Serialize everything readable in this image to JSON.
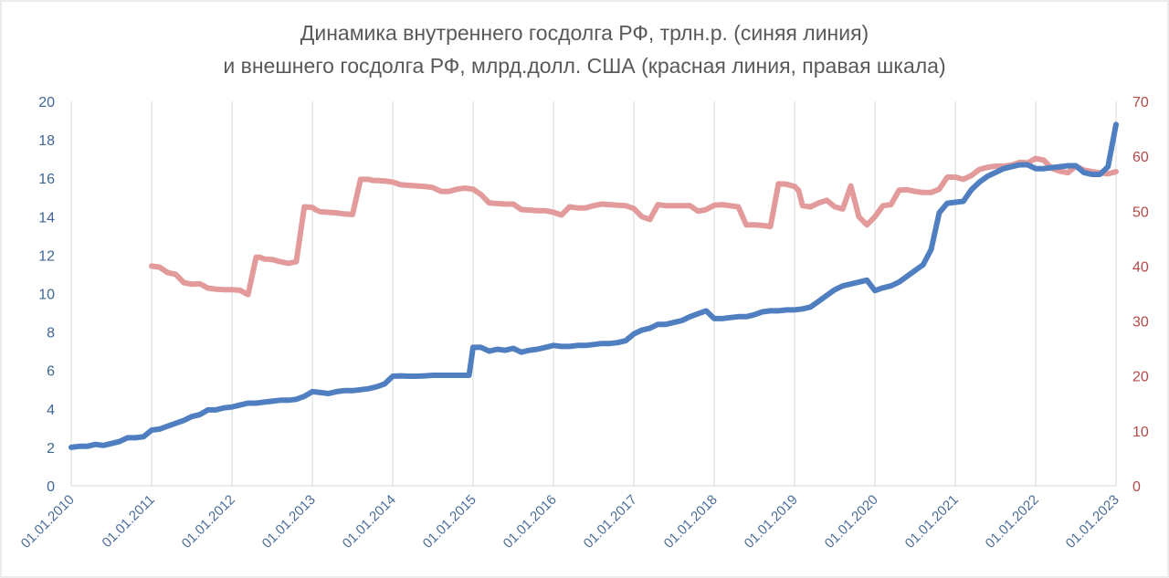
{
  "chart_data": {
    "type": "line",
    "title_lines": [
      "Динамика внутреннего госдолга РФ, трлн.р. (синяя линия)",
      "и внешнего госдолга РФ, млрд.долл. США (красная линия, правая шкала)"
    ],
    "x_labels": [
      "01.01.2010",
      "01.01.2011",
      "01.01.2012",
      "01.01.2013",
      "01.01.2014",
      "01.01.2015",
      "01.01.2016",
      "01.01.2017",
      "01.01.2018",
      "01.01.2019",
      "01.01.2020",
      "01.01.2021",
      "01.01.2022",
      "01.01.2023"
    ],
    "x_range": [
      2010,
      2023
    ],
    "y_left": {
      "range": [
        0,
        20
      ],
      "ticks": [
        "0",
        "2",
        "4",
        "6",
        "8",
        "10",
        "12",
        "14",
        "16",
        "18",
        "20"
      ]
    },
    "y_right": {
      "range": [
        0,
        70
      ],
      "ticks": [
        "0",
        "10",
        "20",
        "30",
        "40",
        "50",
        "60",
        "70"
      ]
    },
    "grid": "vertical",
    "colors": {
      "blue": "#4f7fc0",
      "red": "#e39a9a",
      "left_axis": "#3f6593",
      "right_axis": "#b24a4a"
    },
    "series": [
      {
        "axis": "left",
        "color": "#4f7fc0",
        "x": [
          2010.0,
          2010.1,
          2010.2,
          2010.3,
          2010.4,
          2010.5,
          2010.6,
          2010.7,
          2010.8,
          2010.9,
          2011.0,
          2011.1,
          2011.2,
          2011.3,
          2011.4,
          2011.5,
          2011.6,
          2011.7,
          2011.8,
          2011.9,
          2012.0,
          2012.1,
          2012.2,
          2012.3,
          2012.4,
          2012.5,
          2012.6,
          2012.7,
          2012.8,
          2012.9,
          2013.0,
          2013.1,
          2013.2,
          2013.3,
          2013.4,
          2013.5,
          2013.6,
          2013.7,
          2013.8,
          2013.9,
          2014.0,
          2014.1,
          2014.2,
          2014.3,
          2014.4,
          2014.5,
          2014.6,
          2014.7,
          2014.8,
          2014.95,
          2015.0,
          2015.1,
          2015.2,
          2015.3,
          2015.4,
          2015.5,
          2015.6,
          2015.7,
          2015.8,
          2015.9,
          2016.0,
          2016.1,
          2016.2,
          2016.3,
          2016.4,
          2016.5,
          2016.6,
          2016.7,
          2016.8,
          2016.9,
          2017.0,
          2017.1,
          2017.2,
          2017.3,
          2017.4,
          2017.5,
          2017.6,
          2017.7,
          2017.8,
          2017.9,
          2018.0,
          2018.1,
          2018.2,
          2018.3,
          2018.4,
          2018.5,
          2018.6,
          2018.7,
          2018.8,
          2018.9,
          2019.0,
          2019.1,
          2019.2,
          2019.3,
          2019.4,
          2019.5,
          2019.6,
          2019.7,
          2019.8,
          2019.9,
          2020.0,
          2020.1,
          2020.2,
          2020.3,
          2020.4,
          2020.5,
          2020.6,
          2020.7,
          2020.8,
          2020.9,
          2021.0,
          2021.1,
          2021.2,
          2021.3,
          2021.4,
          2021.5,
          2021.6,
          2021.7,
          2021.8,
          2021.9,
          2022.0,
          2022.1,
          2022.2,
          2022.3,
          2022.4,
          2022.5,
          2022.6,
          2022.7,
          2022.8,
          2022.9,
          2023.0
        ],
        "values": [
          2.0,
          2.05,
          2.05,
          2.15,
          2.1,
          2.2,
          2.3,
          2.5,
          2.5,
          2.55,
          2.9,
          2.95,
          3.1,
          3.25,
          3.4,
          3.6,
          3.7,
          3.95,
          3.95,
          4.05,
          4.1,
          4.2,
          4.3,
          4.3,
          4.35,
          4.4,
          4.45,
          4.45,
          4.5,
          4.65,
          4.9,
          4.85,
          4.8,
          4.9,
          4.95,
          4.95,
          5.0,
          5.05,
          5.15,
          5.3,
          5.7,
          5.72,
          5.7,
          5.7,
          5.72,
          5.75,
          5.75,
          5.75,
          5.75,
          5.75,
          7.2,
          7.2,
          7.0,
          7.1,
          7.05,
          7.15,
          6.95,
          7.05,
          7.1,
          7.2,
          7.3,
          7.25,
          7.25,
          7.3,
          7.3,
          7.35,
          7.4,
          7.4,
          7.45,
          7.55,
          7.9,
          8.1,
          8.2,
          8.4,
          8.4,
          8.5,
          8.6,
          8.8,
          8.95,
          9.1,
          8.7,
          8.7,
          8.75,
          8.8,
          8.8,
          8.9,
          9.05,
          9.1,
          9.1,
          9.15,
          9.15,
          9.2,
          9.3,
          9.6,
          9.9,
          10.2,
          10.4,
          10.5,
          10.6,
          10.7,
          10.15,
          10.3,
          10.4,
          10.6,
          10.9,
          11.2,
          11.5,
          12.3,
          14.2,
          14.7,
          14.75,
          14.8,
          15.4,
          15.8,
          16.1,
          16.3,
          16.5,
          16.6,
          16.7,
          16.7,
          16.5,
          16.5,
          16.55,
          16.6,
          16.65,
          16.65,
          16.3,
          16.2,
          16.2,
          16.6,
          18.8
        ]
      },
      {
        "axis": "right",
        "color": "#e39a9a",
        "x": [
          2011.0,
          2011.1,
          2011.2,
          2011.3,
          2011.4,
          2011.5,
          2011.6,
          2011.7,
          2011.8,
          2011.9,
          2012.0,
          2012.1,
          2012.2,
          2012.3,
          2012.35,
          2012.4,
          2012.5,
          2012.6,
          2012.7,
          2012.8,
          2012.9,
          2013.0,
          2013.05,
          2013.1,
          2013.2,
          2013.3,
          2013.4,
          2013.5,
          2013.6,
          2013.7,
          2013.75,
          2013.8,
          2013.9,
          2014.0,
          2014.1,
          2014.2,
          2014.3,
          2014.4,
          2014.5,
          2014.6,
          2014.7,
          2014.8,
          2014.9,
          2015.0,
          2015.1,
          2015.2,
          2015.3,
          2015.4,
          2015.5,
          2015.6,
          2015.7,
          2015.8,
          2015.9,
          2016.0,
          2016.1,
          2016.2,
          2016.3,
          2016.4,
          2016.5,
          2016.6,
          2016.7,
          2016.8,
          2016.9,
          2017.0,
          2017.1,
          2017.2,
          2017.3,
          2017.4,
          2017.5,
          2017.6,
          2017.7,
          2017.8,
          2017.9,
          2018.0,
          2018.1,
          2018.2,
          2018.3,
          2018.4,
          2018.5,
          2018.6,
          2018.7,
          2018.8,
          2018.9,
          2019.0,
          2019.05,
          2019.1,
          2019.2,
          2019.3,
          2019.4,
          2019.5,
          2019.6,
          2019.7,
          2019.8,
          2019.9,
          2020.0,
          2020.1,
          2020.2,
          2020.3,
          2020.4,
          2020.5,
          2020.6,
          2020.7,
          2020.8,
          2020.9,
          2021.0,
          2021.1,
          2021.2,
          2021.3,
          2021.4,
          2021.5,
          2021.6,
          2021.7,
          2021.8,
          2021.9,
          2022.0,
          2022.1,
          2022.2,
          2022.3,
          2022.4,
          2022.5,
          2022.6,
          2022.7,
          2022.8,
          2022.9,
          2023.0
        ],
        "values": [
          40.0,
          39.8,
          38.8,
          38.5,
          37.0,
          36.7,
          36.8,
          36.0,
          35.8,
          35.7,
          35.7,
          35.6,
          34.8,
          41.6,
          41.6,
          41.3,
          41.2,
          40.8,
          40.5,
          40.8,
          50.8,
          50.7,
          50.2,
          49.9,
          49.8,
          49.7,
          49.5,
          49.4,
          55.8,
          55.8,
          55.6,
          55.6,
          55.5,
          55.3,
          54.8,
          54.7,
          54.6,
          54.5,
          54.3,
          53.6,
          53.6,
          54.0,
          54.2,
          54.0,
          53.0,
          51.5,
          51.4,
          51.3,
          51.3,
          50.3,
          50.2,
          50.1,
          50.1,
          49.8,
          49.3,
          50.8,
          50.6,
          50.6,
          51.0,
          51.3,
          51.2,
          51.1,
          51.0,
          50.5,
          49.0,
          48.5,
          51.2,
          51.0,
          51.0,
          51.0,
          51.0,
          50.0,
          50.3,
          51.1,
          51.2,
          51.0,
          50.8,
          47.5,
          47.5,
          47.4,
          47.2,
          55.0,
          54.9,
          54.5,
          53.8,
          51.0,
          50.8,
          51.5,
          52.0,
          50.8,
          50.4,
          54.6,
          49.0,
          47.5,
          49.0,
          51.0,
          51.2,
          53.8,
          53.9,
          53.6,
          53.4,
          53.4,
          54.0,
          56.2,
          56.2,
          55.8,
          56.5,
          57.6,
          58.0,
          58.2,
          58.2,
          58.4,
          58.9,
          58.8,
          59.6,
          59.3,
          57.8,
          57.3,
          57.0,
          58.2,
          57.5,
          57.2,
          57.0,
          56.8,
          57.2
        ]
      }
    ]
  }
}
